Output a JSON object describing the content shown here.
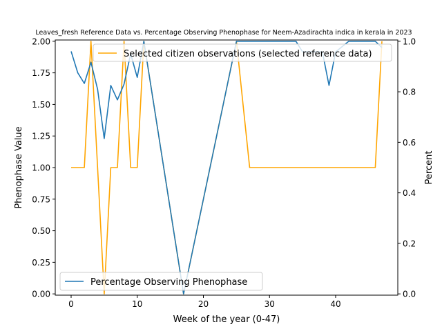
{
  "chart_data": {
    "type": "line",
    "title": "Leaves_fresh Reference Data vs. Percentage Observing Phenophase for Neem-Azadirachta indica in kerala in 2023",
    "xlabel": "Week of the year (0-47)",
    "ylabel_left": "Phenophase Value",
    "ylabel_right": "Percent",
    "xlim": [
      -2.4,
      49.4
    ],
    "ylim_left": [
      -0.01,
      2.01
    ],
    "ylim_right": [
      -0.005,
      1.005
    ],
    "x_ticks": [
      0,
      10,
      20,
      30,
      40
    ],
    "y_ticks_left": [
      "0.00",
      "0.25",
      "0.50",
      "0.75",
      "1.00",
      "1.25",
      "1.50",
      "1.75",
      "2.00"
    ],
    "y_ticks_right": [
      "0.0",
      "0.2",
      "0.4",
      "0.6",
      "0.8",
      "1.0"
    ],
    "grid": false,
    "series": [
      {
        "name": "Selected citizen observations (selected reference data)",
        "axis": "left",
        "color": "#ffa500",
        "legend_position": "upper-right",
        "x": [
          0,
          1,
          2,
          3,
          4,
          5,
          6,
          7,
          8,
          9,
          10,
          11,
          17,
          25,
          26,
          27,
          46,
          47
        ],
        "y": [
          1,
          1,
          1,
          2,
          1,
          0,
          1,
          1,
          2,
          1,
          1,
          2,
          0,
          2,
          1.5,
          1,
          1,
          2
        ]
      },
      {
        "name": "Percentage Observing Phenophase",
        "axis": "right",
        "color": "#1f77b4",
        "legend_position": "lower-left",
        "x": [
          0,
          1,
          2,
          3,
          4,
          5,
          6,
          7,
          8,
          9,
          10,
          11,
          17,
          25,
          34,
          35,
          38,
          39,
          40,
          42,
          46,
          47
        ],
        "y": [
          0.96,
          0.875,
          0.833,
          0.917,
          0.81,
          0.615,
          0.825,
          0.768,
          0.83,
          0.95,
          0.857,
          1.0,
          0.0,
          1.0,
          1.0,
          0.958,
          0.958,
          0.825,
          0.958,
          1.0,
          1.0,
          0.975
        ]
      }
    ]
  }
}
